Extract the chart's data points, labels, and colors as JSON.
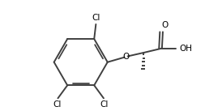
{
  "bg_color": "#ffffff",
  "line_color": "#404040",
  "line_width": 1.4,
  "text_color": "#000000",
  "font_size": 7.5,
  "figsize": [
    2.74,
    1.37
  ],
  "dpi": 100,
  "labels": {
    "Cl_top": "Cl",
    "Cl_bl": "Cl",
    "Cl_br": "Cl",
    "O": "O",
    "O_carbonyl": "O",
    "OH": "OH"
  }
}
